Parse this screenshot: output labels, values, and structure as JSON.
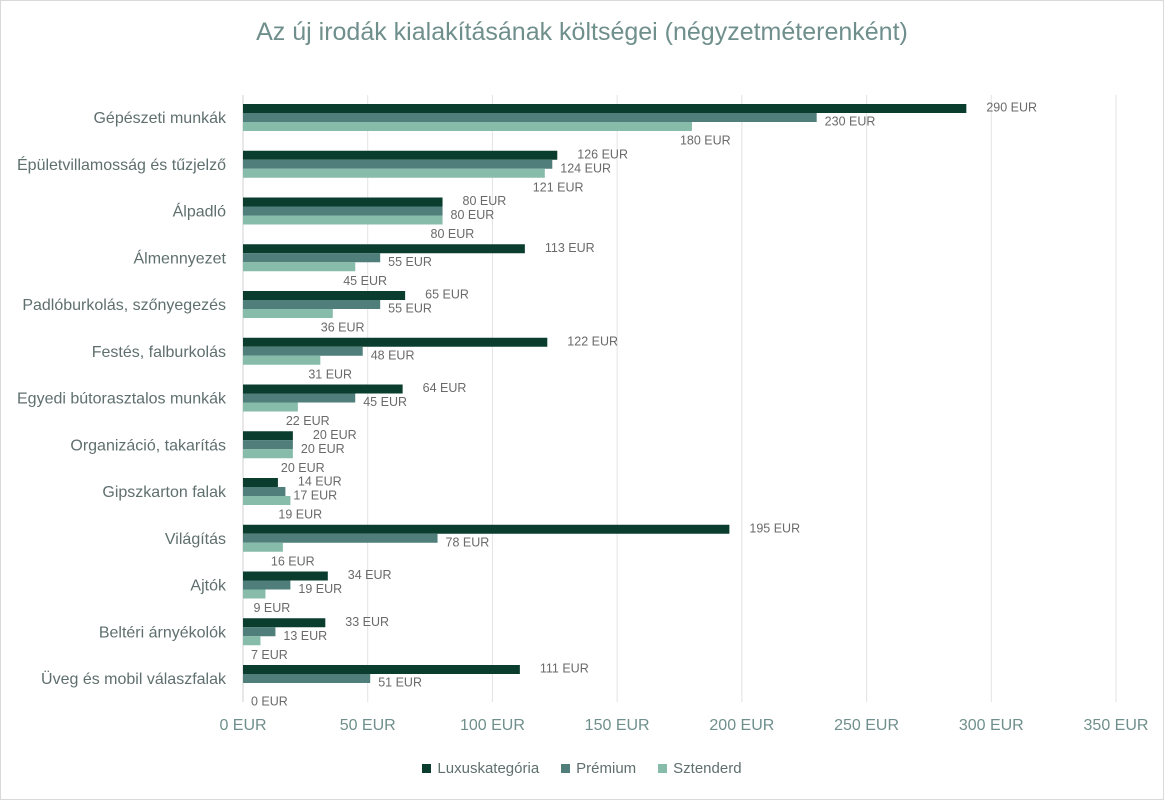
{
  "chart_data": {
    "type": "bar",
    "orientation": "horizontal",
    "title": "Az új irodák kialakításának költségei (négyzetméterenként)",
    "categories": [
      "Gépészeti munkák",
      "Épületvillamosság és tűzjelző",
      "Álpadló",
      "Álmennyezet",
      "Padlóburkolás, szőnyegezés",
      "Festés, falburkolás",
      "Egyedi bútorasztalos munkák",
      "Organizáció, takarítás",
      "Gipszkarton falak",
      "Világítás",
      "Ajtók",
      "Beltéri árnyékolók",
      "Üveg és mobil válaszfalak"
    ],
    "series": [
      {
        "name": "Luxuskategória",
        "color": "#0b3d2f",
        "values": [
          290,
          126,
          80,
          113,
          65,
          122,
          64,
          20,
          14,
          195,
          34,
          33,
          111
        ]
      },
      {
        "name": "Prémium",
        "color": "#4f7e7b",
        "values": [
          230,
          124,
          80,
          55,
          55,
          48,
          45,
          20,
          17,
          78,
          19,
          13,
          51
        ]
      },
      {
        "name": "Sztenderd",
        "color": "#88bcaa",
        "values": [
          180,
          121,
          80,
          45,
          36,
          31,
          22,
          20,
          19,
          16,
          9,
          7,
          0
        ]
      }
    ],
    "value_suffix": " EUR",
    "xlim": [
      0,
      350
    ],
    "xticks": [
      0,
      50,
      100,
      150,
      200,
      250,
      300,
      350
    ],
    "xtick_labels": [
      "0 EUR",
      "50 EUR",
      "100 EUR",
      "150 EUR",
      "200 EUR",
      "250 EUR",
      "300 EUR",
      "350 EUR"
    ],
    "grid": true,
    "legend": "bottom"
  }
}
